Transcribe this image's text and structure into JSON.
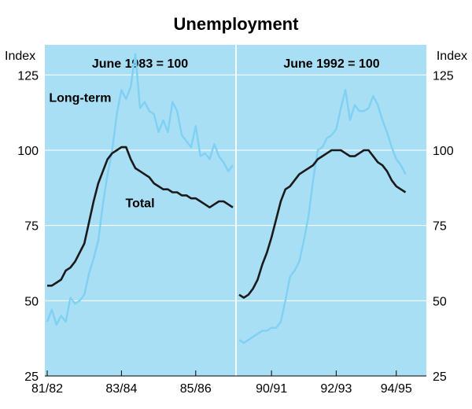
{
  "chart_data": {
    "type": "line",
    "title": "Unemployment",
    "ylabel_left": "Index",
    "ylabel_right": "Index",
    "ylim": [
      25,
      135
    ],
    "yticks": [
      25,
      50,
      75,
      100,
      125
    ],
    "grid": true,
    "colors": {
      "background": "#a9dff5",
      "grid": "#ffffff",
      "Total": "#1a1a1a",
      "Long-term": "#7fd0f2"
    },
    "panels": [
      {
        "subtitle": "June 1983 = 100",
        "xlim": [
          0,
          40
        ],
        "xticks": [
          {
            "x": 0,
            "label": "81/82"
          },
          {
            "x": 16,
            "label": "83/84"
          },
          {
            "x": 32,
            "label": "85/86"
          }
        ],
        "series": [
          {
            "name": "Long-term",
            "label_at": [
              0.4,
              116
            ],
            "x": [
              0,
              1,
              2,
              3,
              4,
              5,
              6,
              7,
              8,
              9,
              10,
              11,
              12,
              13,
              14,
              15,
              16,
              17,
              18,
              19,
              20,
              21,
              22,
              23,
              24,
              25,
              26,
              27,
              28,
              29,
              30,
              31,
              32,
              33,
              34,
              35,
              36,
              37,
              38,
              39,
              40
            ],
            "values": [
              43,
              47,
              42,
              45,
              43,
              51,
              49,
              50,
              52,
              59,
              64,
              70,
              82,
              92,
              100,
              112,
              120,
              117,
              121,
              132,
              114,
              116,
              113,
              112,
              106,
              110,
              106,
              116,
              113,
              105,
              103,
              101,
              108,
              98,
              99,
              97,
              102,
              98,
              96,
              93,
              95
            ]
          },
          {
            "name": "Total",
            "label_at": [
              20,
              81
            ],
            "x": [
              0,
              1,
              2,
              3,
              4,
              5,
              6,
              7,
              8,
              9,
              10,
              11,
              12,
              13,
              14,
              15,
              16,
              17,
              18,
              19,
              20,
              21,
              22,
              23,
              24,
              25,
              26,
              27,
              28,
              29,
              30,
              31,
              32,
              33,
              34,
              35,
              36,
              37,
              38,
              39,
              40
            ],
            "values": [
              55,
              55,
              56,
              57,
              60,
              61,
              63,
              66,
              69,
              76,
              83,
              89,
              93,
              97,
              99,
              100,
              101,
              101,
              97,
              94,
              93,
              92,
              91,
              89,
              88,
              87,
              87,
              86,
              86,
              85,
              85,
              84,
              84,
              83,
              82,
              81,
              82,
              83,
              83,
              82,
              81
            ]
          }
        ]
      },
      {
        "subtitle": "June 1992 = 100",
        "xlim": [
          0,
          40
        ],
        "xticks": [
          {
            "x": 7,
            "label": "90/91"
          },
          {
            "x": 21,
            "label": "92/93"
          },
          {
            "x": 34,
            "label": "94/95"
          }
        ],
        "series": [
          {
            "name": "Long-term",
            "x": [
              0,
              1,
              2,
              3,
              4,
              5,
              6,
              7,
              8,
              9,
              10,
              11,
              12,
              13,
              14,
              15,
              16,
              17,
              18,
              19,
              20,
              21,
              22,
              23,
              24,
              25,
              26,
              27,
              28,
              29,
              30,
              31,
              32,
              33,
              34,
              35,
              36
            ],
            "values": [
              37,
              36,
              37,
              38,
              39,
              40,
              40,
              41,
              41,
              43,
              50,
              58,
              60,
              63,
              70,
              78,
              90,
              100,
              101,
              104,
              105,
              107,
              114,
              120,
              110,
              115,
              113,
              113,
              114,
              118,
              115,
              110,
              106,
              101,
              97,
              95,
              92
            ]
          },
          {
            "name": "Total",
            "x": [
              0,
              1,
              2,
              3,
              4,
              5,
              6,
              7,
              8,
              9,
              10,
              11,
              12,
              13,
              14,
              15,
              16,
              17,
              18,
              19,
              20,
              21,
              22,
              23,
              24,
              25,
              26,
              27,
              28,
              29,
              30,
              31,
              32,
              33,
              34,
              35,
              36
            ],
            "values": [
              52,
              51,
              52,
              54,
              57,
              62,
              66,
              71,
              77,
              83,
              87,
              88,
              90,
              92,
              93,
              94,
              95,
              97,
              98,
              99,
              100,
              100,
              100,
              99,
              98,
              98,
              99,
              100,
              100,
              98,
              96,
              95,
              93,
              90,
              88,
              87,
              86
            ]
          }
        ]
      }
    ]
  }
}
